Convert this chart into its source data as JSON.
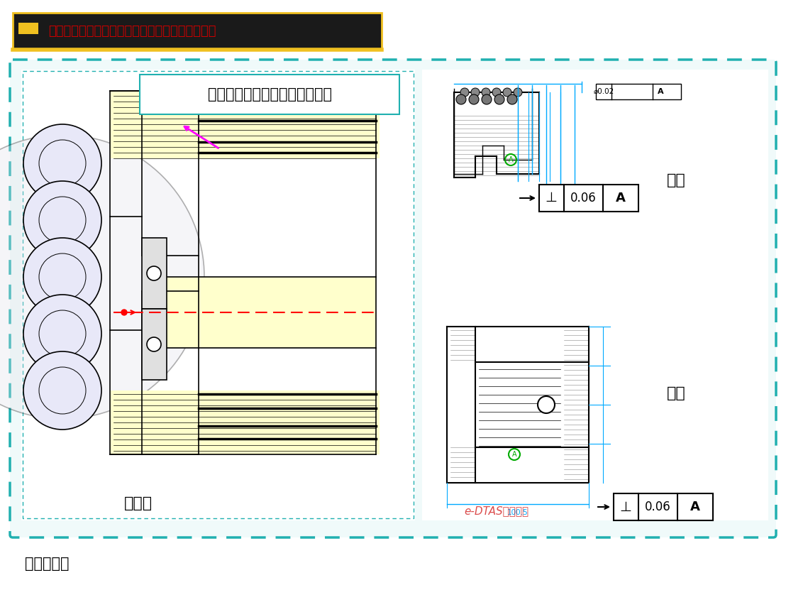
{
  "title_bar": {
    "bg_color": "#1a1a1a",
    "icon_color": "#f0c020",
    "text": "机壳与端盖止口垂直度对轴承中心造成的径向偏差",
    "text_color": "#cc0000",
    "box_outline": "#f0c020"
  },
  "main_panel": {
    "bg_color": "#ffffff",
    "border_color": "#00b0b0",
    "border_style": "dashed"
  },
  "annotation_box": {
    "text": "二者配合时可能会产生一个角度",
    "text_color": "#000000",
    "box_color": "#ffffff",
    "box_border": "#00b0b0",
    "arrow_color": "#cc00cc"
  },
  "label_assembly": "装配图",
  "label_end_cover": "端盖",
  "label_housing": "机壳",
  "label_dim_chain": "尺寸链建立",
  "tolerance_end_cover": "⊥  0.06  A",
  "tolerance_housing": "⊥  0.06  A",
  "bg_color": "#ffffff",
  "panel_bg": "#f8f8f8",
  "cad_bg": "#ffffff",
  "yellow_hatch": "#ffffcc",
  "cad_line": "#000000",
  "dim_line": "#00aaff",
  "red_dash": "#ff0000",
  "magenta": "#ff00ff",
  "teal_border": "#20b0b0"
}
